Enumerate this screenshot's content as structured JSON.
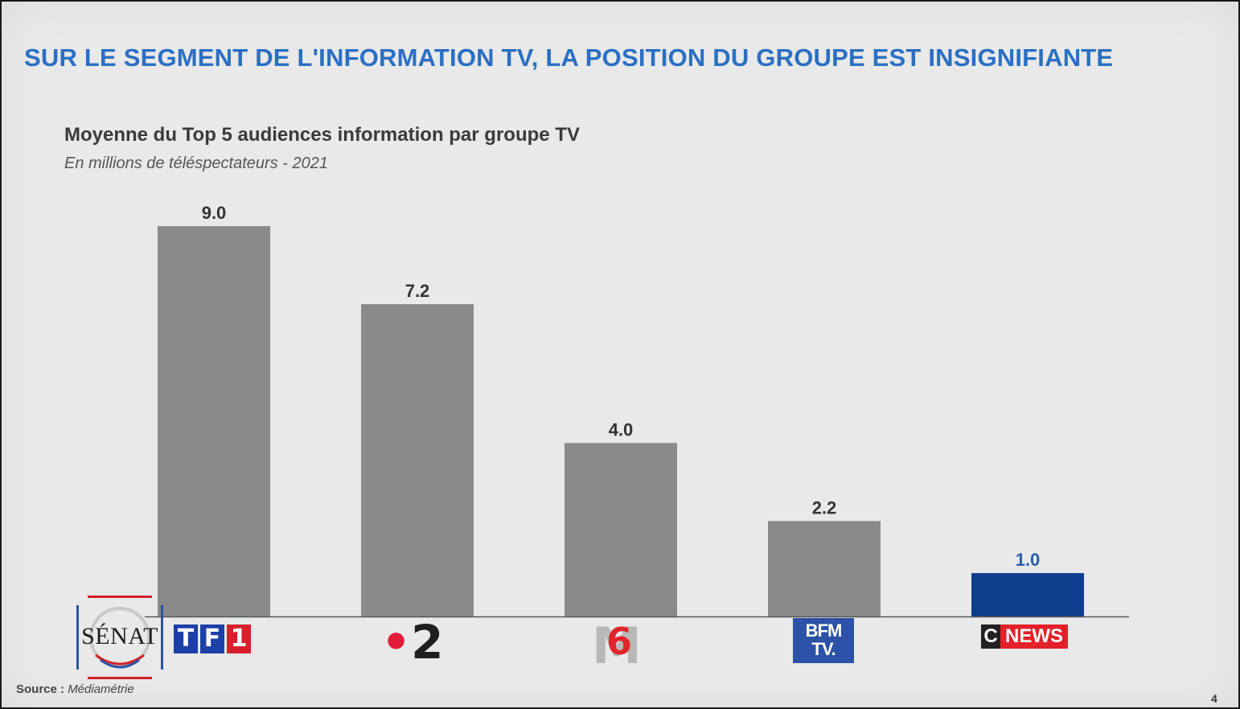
{
  "headline": "SUR LE SEGMENT DE L'INFORMATION TV, LA POSITION DU GROUPE EST INSIGNIFIANTE",
  "footer": {
    "source_label": "Source :",
    "source_value": "Médiamétrie",
    "page_number": "4"
  },
  "watermark": {
    "text": "SÉNAT"
  },
  "logos": {
    "tf1": [
      "T",
      "F",
      "1"
    ],
    "france2_dot": "•",
    "france2_num": "2",
    "m6_m": "M",
    "m6_six": "6",
    "bfm": [
      "BFM",
      "TV."
    ],
    "cnews_c": "C",
    "cnews_word": "NEWS"
  },
  "colors": {
    "headline": "#2a6fc4",
    "bar_default": "#8a8a8a",
    "bar_highlight": "#0e3f8c",
    "label_highlight": "#2a5ca8"
  },
  "chart_data": {
    "type": "bar",
    "title": "Moyenne du Top 5 audiences information par groupe TV",
    "subtitle": "En millions de téléspectateurs - 2021",
    "categories": [
      "TF1",
      "France 2",
      "M6",
      "BFM TV",
      "CNEWS"
    ],
    "values": [
      9.0,
      7.2,
      4.0,
      2.2,
      1.0
    ],
    "value_labels": [
      "9.0",
      "7.2",
      "4.0",
      "2.2",
      "1.0"
    ],
    "highlight_index": 4,
    "ylim": [
      0,
      9.0
    ],
    "grid": false,
    "legend": "none"
  }
}
